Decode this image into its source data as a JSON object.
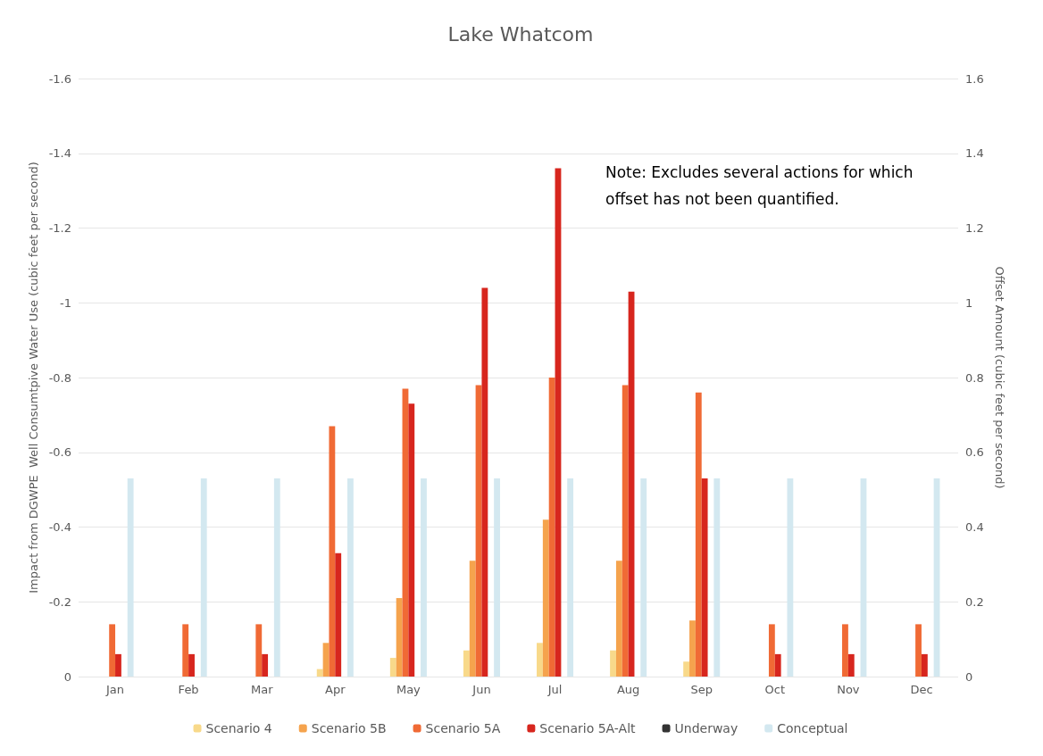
{
  "chart_data": {
    "type": "bar",
    "title": "Lake Whatcom",
    "categories": [
      "Jan",
      "Feb",
      "Mar",
      "Apr",
      "May",
      "Jun",
      "Jul",
      "Aug",
      "Sep",
      "Oct",
      "Nov",
      "Dec"
    ],
    "series": [
      {
        "name": "Scenario 4",
        "color": "#f8d98a",
        "values": [
          0,
          0,
          0,
          -0.02,
          -0.05,
          -0.07,
          -0.09,
          -0.07,
          -0.04,
          0,
          0,
          0
        ]
      },
      {
        "name": "Scenario 5B",
        "color": "#f5a34d",
        "values": [
          0,
          0,
          0,
          -0.09,
          -0.21,
          -0.31,
          -0.42,
          -0.31,
          -0.15,
          0,
          0,
          0
        ]
      },
      {
        "name": "Scenario 5A",
        "color": "#f06a35",
        "values": [
          -0.14,
          -0.14,
          -0.14,
          -0.67,
          -0.77,
          -0.78,
          -0.8,
          -0.78,
          -0.76,
          -0.14,
          -0.14,
          -0.14
        ]
      },
      {
        "name": "Scenario 5A-Alt",
        "color": "#d7261e",
        "values": [
          -0.06,
          -0.06,
          -0.06,
          -0.33,
          -0.73,
          -1.04,
          -1.36,
          -1.03,
          -0.53,
          -0.06,
          -0.06,
          -0.06
        ]
      },
      {
        "name": "Underway",
        "color": "#333333",
        "axis": "y2",
        "values": [
          null,
          null,
          null,
          null,
          null,
          null,
          null,
          null,
          null,
          null,
          null,
          null
        ]
      },
      {
        "name": "Conceptual",
        "color": "#d3e8f0",
        "axis": "y2",
        "values": [
          0.53,
          0.53,
          0.53,
          0.53,
          0.53,
          0.53,
          0.53,
          0.53,
          0.53,
          0.53,
          0.53,
          0.53
        ]
      }
    ],
    "ylabel": "Impact from DGWPE  Well Consumtpive Water Use (cubic feet per second)",
    "y2label": "Offset Amount (cubic feet per second)",
    "ylim": [
      0,
      -1.6
    ],
    "yticks": [
      0,
      -0.2,
      -0.4,
      -0.6,
      -0.8,
      -1,
      -1.2,
      -1.4,
      -1.6
    ],
    "y2lim": [
      0,
      1.6
    ],
    "y2ticks": [
      0,
      0.2,
      0.4,
      0.6,
      0.8,
      1,
      1.2,
      1.4,
      1.6
    ],
    "grid": "y",
    "legend": "bottom",
    "annotations": [
      "Note: Excludes several actions for which offset has not been quantified."
    ]
  }
}
